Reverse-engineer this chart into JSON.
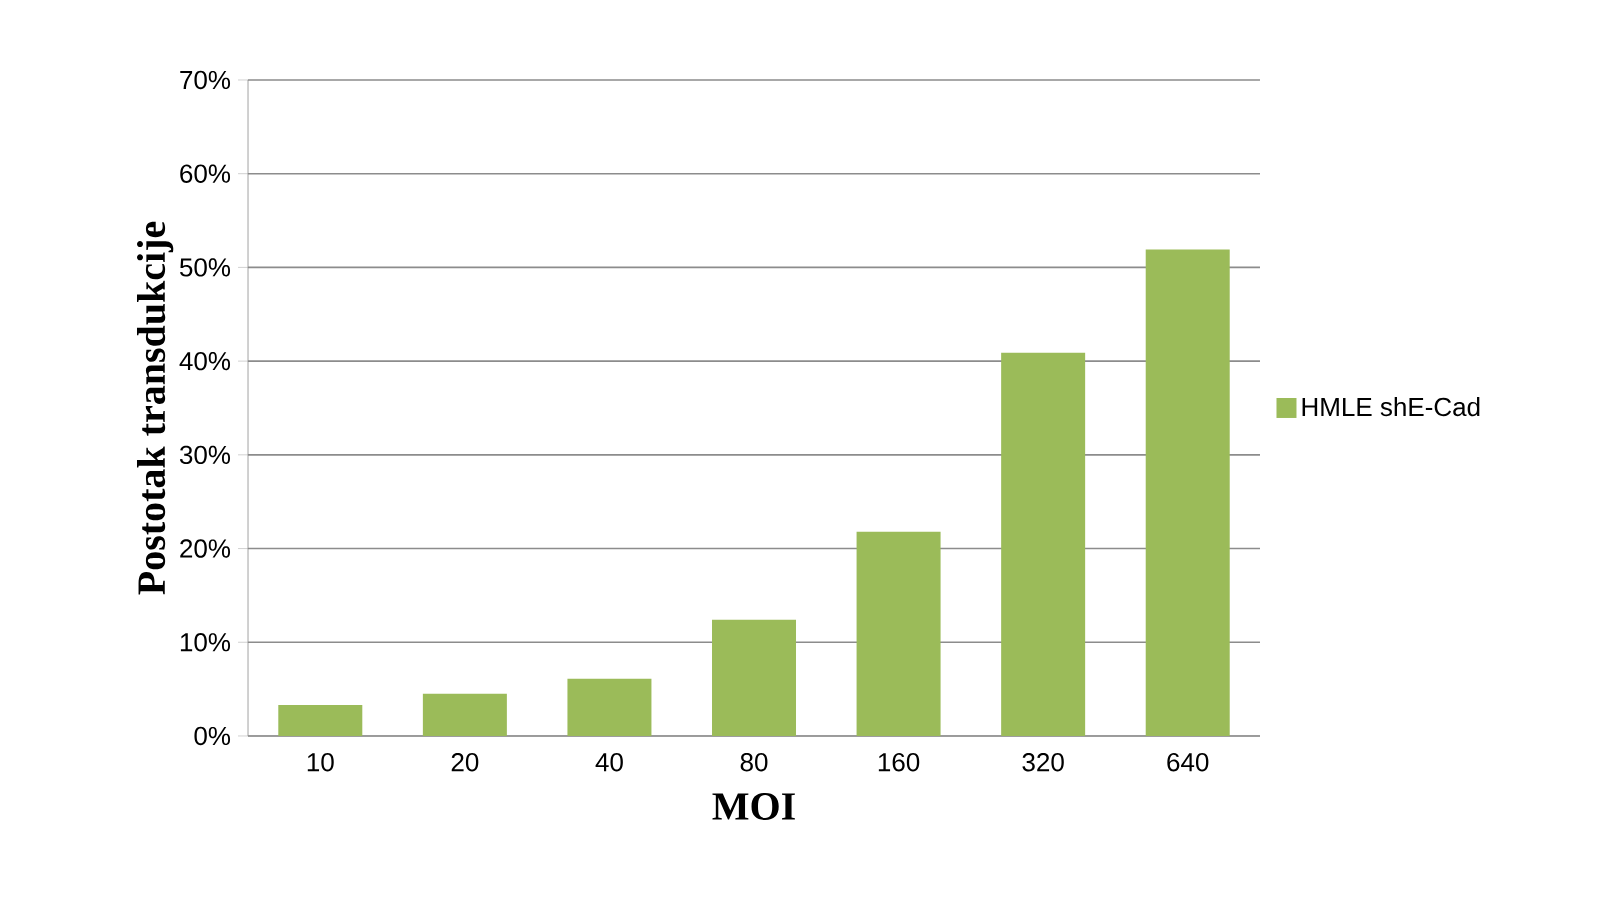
{
  "chart_data": {
    "type": "bar",
    "xlabel": "MOI",
    "ylabel": "Postotak transdukcije",
    "categories": [
      "10",
      "20",
      "40",
      "80",
      "160",
      "320",
      "640"
    ],
    "series": [
      {
        "name": "HMLE shE-Cad",
        "color": "#9bbb59",
        "values": [
          3.3,
          4.5,
          6.1,
          12.4,
          21.8,
          40.9,
          51.9
        ]
      }
    ],
    "ylim": [
      0,
      70
    ],
    "yticks": [
      {
        "value": 0,
        "label": "0%"
      },
      {
        "value": 10,
        "label": "10%"
      },
      {
        "value": 20,
        "label": "20%"
      },
      {
        "value": 30,
        "label": "30%"
      },
      {
        "value": 40,
        "label": "40%"
      },
      {
        "value": 50,
        "label": "50%"
      },
      {
        "value": 60,
        "label": "60%"
      },
      {
        "value": 70,
        "label": "70%"
      }
    ],
    "grid": "y",
    "legend": "right"
  }
}
